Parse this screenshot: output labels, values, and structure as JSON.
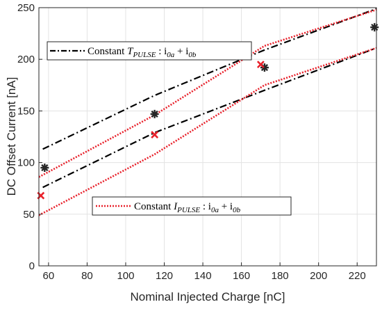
{
  "chart_data": {
    "type": "line",
    "xlabel": "Nominal Injected Charge  [nC]",
    "ylabel": "DC Offset Current [nA]",
    "xlim": [
      55,
      230
    ],
    "ylim": [
      0,
      250
    ],
    "xticks": [
      60,
      80,
      100,
      120,
      140,
      160,
      180,
      200,
      220
    ],
    "yticks": [
      0,
      50,
      100,
      150,
      200,
      250
    ],
    "grid": true,
    "series": [
      {
        "name": "Constant T_PULSE : i0a + i0b",
        "color": "#000000",
        "style": "dashdot",
        "legend": {
          "prefix": "Constant ",
          "var": "T",
          "sub": "PULSE",
          "rest": " : i",
          "s1": "0a",
          "plus": " + i",
          "s2": "0b"
        },
        "lines": [
          {
            "x": [
              57,
              115,
              172,
              230
            ],
            "y": [
              113,
              165,
              209,
              249
            ]
          },
          {
            "x": [
              57,
              115,
              172,
              230
            ],
            "y": [
              76,
              129,
              170,
              211
            ]
          }
        ]
      },
      {
        "name": "Constant I_PULSE : i0a + i0b",
        "color": "#e8202a",
        "style": "dotted",
        "legend": {
          "prefix": "Constant ",
          "var": "I",
          "sub": "PULSE",
          "rest": " : i",
          "s1": "0a",
          "plus": " + i",
          "s2": "0b"
        },
        "lines": [
          {
            "x": [
              55,
              115,
              172,
              230
            ],
            "y": [
              86,
              146,
              213,
              248
            ]
          },
          {
            "x": [
              55,
              115,
              172,
              230
            ],
            "y": [
              49,
              108,
              175,
              211
            ]
          }
        ]
      }
    ],
    "markers": [
      {
        "kind": "asterisk",
        "color": "#262626",
        "points": [
          [
            58,
            95
          ],
          [
            115,
            147
          ],
          [
            172,
            192
          ],
          [
            229,
            231
          ]
        ]
      },
      {
        "kind": "cross",
        "color": "#e8202a",
        "points": [
          [
            56,
            68
          ],
          [
            115,
            127
          ],
          [
            170,
            195
          ]
        ]
      }
    ]
  }
}
